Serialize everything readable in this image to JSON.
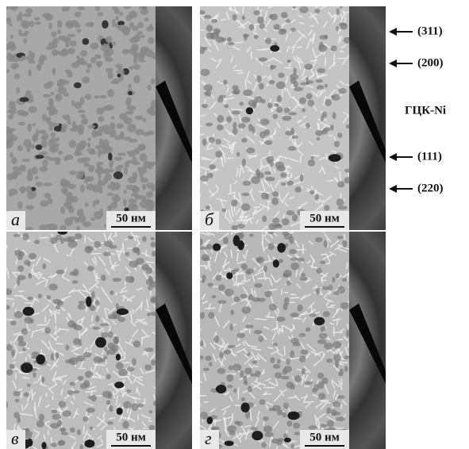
{
  "panels": [
    {
      "label": "а",
      "scale_bar": "50 нм"
    },
    {
      "label": "б",
      "scale_bar": "50 нм"
    },
    {
      "label": "в",
      "scale_bar": "50 нм"
    },
    {
      "label": "г",
      "scale_bar": "50 нм"
    }
  ],
  "annotations": {
    "phase": "ГЦК-Ni",
    "rings": [
      "(311)",
      "(200)",
      "(111)",
      "(220)"
    ]
  }
}
